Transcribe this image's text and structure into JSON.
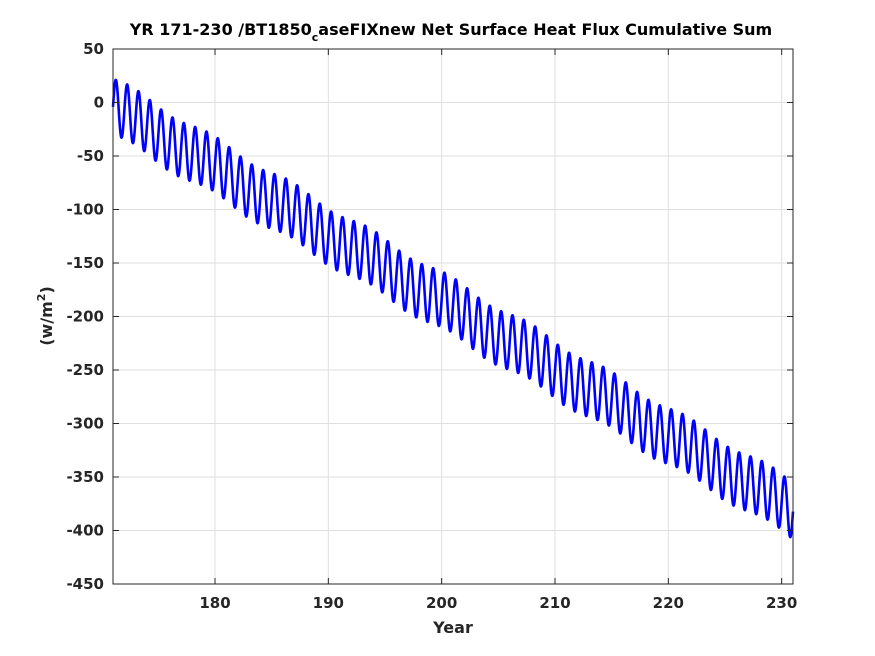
{
  "chart_data": {
    "type": "line",
    "title_main": "YR 171-230 /BT1850",
    "title_subscript": "c",
    "title_rest": "aseFIXnew Net Surface Heat Flux  Cumulative Sum",
    "xlabel": "Year",
    "ylabel_main": "(w/m",
    "ylabel_sup": "2",
    "ylabel_close": ")",
    "xlim": [
      171,
      231
    ],
    "ylim": [
      -450,
      50
    ],
    "xticks": [
      180,
      190,
      200,
      210,
      220,
      230
    ],
    "xtick_labels": [
      "180",
      "190",
      "200",
      "210",
      "220",
      "230"
    ],
    "yticks": [
      50,
      0,
      -50,
      -100,
      -150,
      -200,
      -250,
      -300,
      -350,
      -400,
      -450
    ],
    "ytick_labels": [
      "50",
      "0",
      "-50",
      "-100",
      "-150",
      "-200",
      "-250",
      "-300",
      "-350",
      "-400",
      "-450"
    ],
    "grid": true,
    "series": [
      {
        "color": "#0000ff",
        "x_start": 171,
        "x_end": 231,
        "trend_start": -4,
        "trend_end": -381,
        "amplitude": 26,
        "period_years": 1,
        "peak_phase": 0.25
      }
    ]
  }
}
